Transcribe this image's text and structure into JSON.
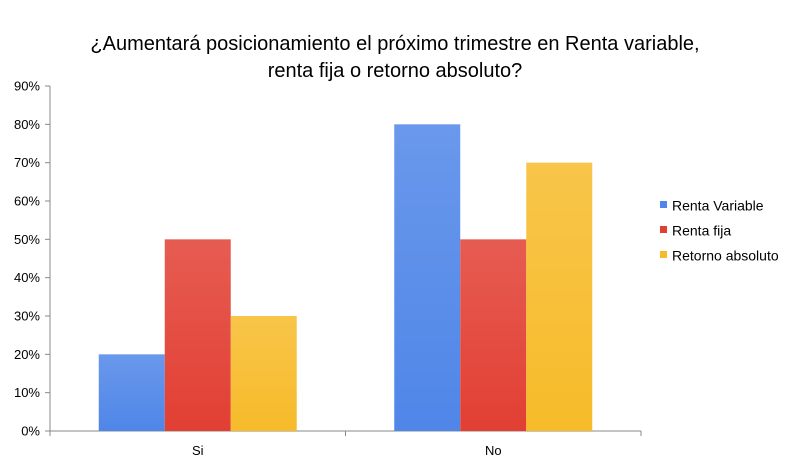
{
  "chart_data": {
    "type": "bar",
    "title_lines": [
      "¿Aumentará  posicionamiento  el próximo  trimestre  en Renta variable,",
      "renta fija o retorno absoluto?"
    ],
    "categories": [
      "Si",
      "No"
    ],
    "series": [
      {
        "name": "Renta Variable",
        "values": [
          20,
          80
        ],
        "color": "#4f86e8"
      },
      {
        "name": "Renta fija",
        "values": [
          50,
          50
        ],
        "color": "#e23f33"
      },
      {
        "name": "Retorno absoluto",
        "values": [
          30,
          70
        ],
        "color": "#f7bb2a"
      }
    ],
    "ylim": [
      0,
      90
    ],
    "y_ticks": [
      "0%",
      "10%",
      "20%",
      "30%",
      "40%",
      "50%",
      "60%",
      "70%",
      "80%",
      "90%"
    ],
    "y_unit": "%",
    "grid": false,
    "legend_position": "right"
  }
}
